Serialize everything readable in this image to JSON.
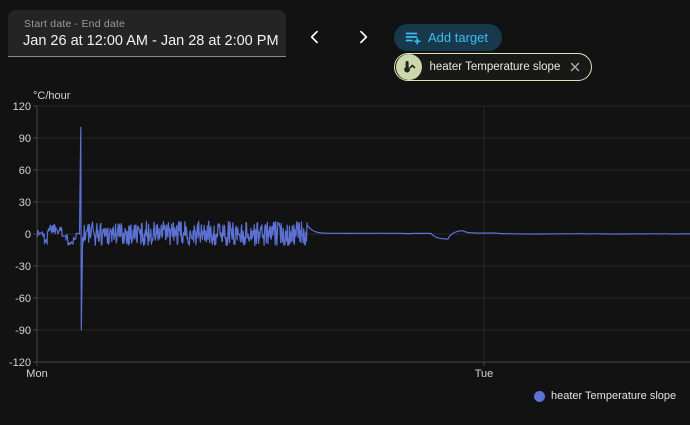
{
  "toolbar": {
    "date_field": {
      "label": "Start date - End date",
      "value": "Jan 26 at 12:00 AM - Jan 28 at 2:00 PM"
    },
    "add_target_label": "Add target",
    "target_chip_label": "heater Temperature slope"
  },
  "legend": {
    "label": "heater Temperature slope"
  },
  "colors": {
    "background": "#121212",
    "line": "#5b72d4",
    "accent_blue": "#3fbcf5",
    "add_target_bg": "#16394b",
    "chip_border": "#d9e5bd",
    "chip_avatar_bg": "#cbd8a9",
    "grid": "#272727",
    "axis": "#474747",
    "tick_text": "#d4d4d4"
  },
  "chart_data": {
    "type": "line",
    "title": "",
    "xlabel": "",
    "ylabel": "°C/hour",
    "ylim": [
      -120,
      120
    ],
    "yticks": [
      120,
      90,
      60,
      30,
      0,
      -30,
      -60,
      -90,
      -120
    ],
    "xticks": [
      {
        "label": "Mon",
        "hour": 0
      },
      {
        "label": "Tue",
        "hour": 24
      }
    ],
    "x_visible_hours": [
      0,
      35.1
    ],
    "grid": true,
    "legend_position": "bottom-right",
    "series": [
      {
        "name": "heater Temperature slope",
        "color": "#5b72d4",
        "seed": 1337,
        "segments": [
          {
            "kind": "noise",
            "from_h": 0.0,
            "to_h": 0.4,
            "min": -4,
            "max": 5
          },
          {
            "kind": "noise",
            "from_h": 0.4,
            "to_h": 0.56,
            "min": -10,
            "max": -5
          },
          {
            "kind": "noise",
            "from_h": 0.56,
            "to_h": 1.35,
            "min": 0,
            "max": 11
          },
          {
            "kind": "flat",
            "from_h": 1.35,
            "to_h": 1.55,
            "value": -2
          },
          {
            "kind": "noise",
            "from_h": 1.55,
            "to_h": 2.1,
            "min": -11,
            "max": 0
          },
          {
            "kind": "flat",
            "from_h": 2.1,
            "to_h": 2.28,
            "value": 0.5
          },
          {
            "kind": "spike",
            "from_h": 2.28,
            "to_h": 2.45,
            "peak": 100,
            "trough": -90
          },
          {
            "kind": "noise",
            "from_h": 2.45,
            "to_h": 14.5,
            "min": -11,
            "max": 12
          },
          {
            "kind": "smooth",
            "from_h": 14.5,
            "to_h": 21.2,
            "base": 0.6,
            "jitter": 0.5
          },
          {
            "kind": "smooth",
            "from_h": 21.2,
            "to_h": 22.1,
            "base": -5,
            "jitter": 0.4
          },
          {
            "kind": "smooth",
            "from_h": 22.1,
            "to_h": 22.9,
            "base": 3.6,
            "jitter": 0.4
          },
          {
            "kind": "smooth",
            "from_h": 22.9,
            "to_h": 24.6,
            "base": 0.8,
            "jitter": 0.4
          },
          {
            "kind": "smooth",
            "from_h": 24.6,
            "to_h": 35.1,
            "base": 0.1,
            "jitter": 0.5
          }
        ]
      }
    ]
  }
}
